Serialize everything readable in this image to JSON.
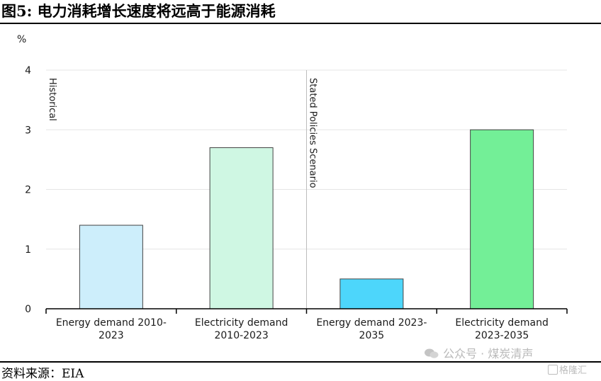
{
  "figure_title": "图5:  电力消耗增长速度将远高于能源消耗",
  "source_text": "资料来源：EIA",
  "watermark_text": "公众号 · 煤炭清声",
  "corner_logo_text": "格隆汇",
  "colors": {
    "gridline": "#e6e6e6",
    "axis": "#000000",
    "bar_outline": "#444444",
    "divider": "#bdbdbd"
  },
  "chart_data": {
    "type": "bar",
    "ylabel": "%",
    "ylim": [
      0,
      4
    ],
    "yticks": [
      "0",
      "1",
      "2",
      "3",
      "4"
    ],
    "grid": true,
    "categories": [
      {
        "line1": "Energy demand 2010-",
        "line2": "2023"
      },
      {
        "line1": "Electricity demand",
        "line2": "2010-2023"
      },
      {
        "line1": "Energy demand 2023-",
        "line2": "2035"
      },
      {
        "line1": "Electricity demand",
        "line2": "2023-2035"
      }
    ],
    "values": [
      1.4,
      2.7,
      0.5,
      3.0
    ],
    "bar_colors": [
      "#cdeefb",
      "#cff7e3",
      "#4dd6fb",
      "#73ef97"
    ],
    "annotations": [
      "Historical",
      "Stated Policies Scenario"
    ]
  }
}
